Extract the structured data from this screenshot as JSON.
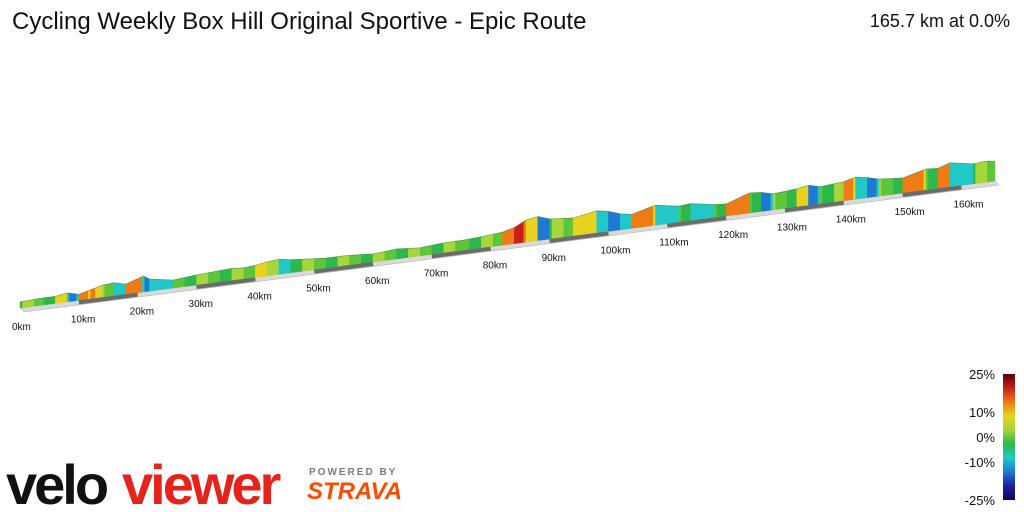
{
  "title": "Cycling Weekly Box Hill Original Sportive - Epic Route",
  "summary": "165.7 km at 0.0%",
  "chart_data": {
    "type": "area",
    "title": "Cycling Weekly Box Hill Original Sportive - Epic Route",
    "x_unit": "km",
    "x_ticks": [
      "0km",
      "10km",
      "20km",
      "30km",
      "40km",
      "50km",
      "60km",
      "70km",
      "80km",
      "90km",
      "100km",
      "110km",
      "120km",
      "130km",
      "140km",
      "150km",
      "160km"
    ],
    "x_tick_values": [
      0,
      10,
      20,
      30,
      40,
      50,
      60,
      70,
      80,
      90,
      100,
      110,
      120,
      130,
      140,
      150,
      160
    ],
    "total_distance_km": 165.7,
    "average_gradient_pct": 0.0,
    "relative_height": [
      [
        0,
        6
      ],
      [
        3,
        7
      ],
      [
        6,
        7
      ],
      [
        8,
        9
      ],
      [
        10,
        6
      ],
      [
        12,
        9
      ],
      [
        14,
        12
      ],
      [
        16,
        13
      ],
      [
        18,
        10
      ],
      [
        20,
        14
      ],
      [
        21,
        16
      ],
      [
        22,
        12
      ],
      [
        24,
        10
      ],
      [
        26,
        8
      ],
      [
        28,
        9
      ],
      [
        30,
        10
      ],
      [
        33,
        11
      ],
      [
        36,
        12
      ],
      [
        38,
        11
      ],
      [
        40,
        12
      ],
      [
        42,
        14
      ],
      [
        44,
        15
      ],
      [
        46,
        13
      ],
      [
        48,
        12
      ],
      [
        50,
        11
      ],
      [
        52,
        10
      ],
      [
        55,
        10
      ],
      [
        58,
        9
      ],
      [
        60,
        8
      ],
      [
        62,
        9
      ],
      [
        64,
        10
      ],
      [
        66,
        9
      ],
      [
        68,
        8
      ],
      [
        70,
        9
      ],
      [
        72,
        10
      ],
      [
        75,
        10
      ],
      [
        78,
        11
      ],
      [
        80,
        12
      ],
      [
        82,
        13
      ],
      [
        84,
        16
      ],
      [
        86,
        22
      ],
      [
        88,
        24
      ],
      [
        90,
        20
      ],
      [
        92,
        19
      ],
      [
        94,
        18
      ],
      [
        96,
        20
      ],
      [
        98,
        22
      ],
      [
        100,
        20
      ],
      [
        102,
        16
      ],
      [
        104,
        14
      ],
      [
        106,
        17
      ],
      [
        108,
        20
      ],
      [
        110,
        18
      ],
      [
        112,
        16
      ],
      [
        114,
        17
      ],
      [
        116,
        15
      ],
      [
        118,
        13
      ],
      [
        120,
        12
      ],
      [
        122,
        16
      ],
      [
        124,
        20
      ],
      [
        126,
        19
      ],
      [
        128,
        16
      ],
      [
        130,
        17
      ],
      [
        132,
        18
      ],
      [
        134,
        20
      ],
      [
        136,
        17
      ],
      [
        138,
        18
      ],
      [
        140,
        19
      ],
      [
        142,
        22
      ],
      [
        144,
        20
      ],
      [
        146,
        17
      ],
      [
        148,
        16
      ],
      [
        150,
        15
      ],
      [
        152,
        18
      ],
      [
        154,
        21
      ],
      [
        156,
        20
      ],
      [
        158,
        24
      ],
      [
        160,
        22
      ],
      [
        162,
        20
      ],
      [
        164,
        21
      ],
      [
        165.7,
        20
      ]
    ],
    "gradient_scale": {
      "ticks": [
        "25%",
        "10%",
        "0%",
        "-10%",
        "-25%"
      ],
      "tick_values": [
        25,
        10,
        0,
        -10,
        -25
      ],
      "colors": [
        "#5a0000",
        "#c81e1e",
        "#f07a14",
        "#e8d21e",
        "#a6d63c",
        "#2db84b",
        "#20c8c8",
        "#1e78d2",
        "#1e1ea0",
        "#0a0a5a"
      ]
    }
  },
  "branding": {
    "logo_part1": "velo",
    "logo_part2": "viewer",
    "powered_by": "POWERED BY",
    "strava": "STRAVA"
  }
}
